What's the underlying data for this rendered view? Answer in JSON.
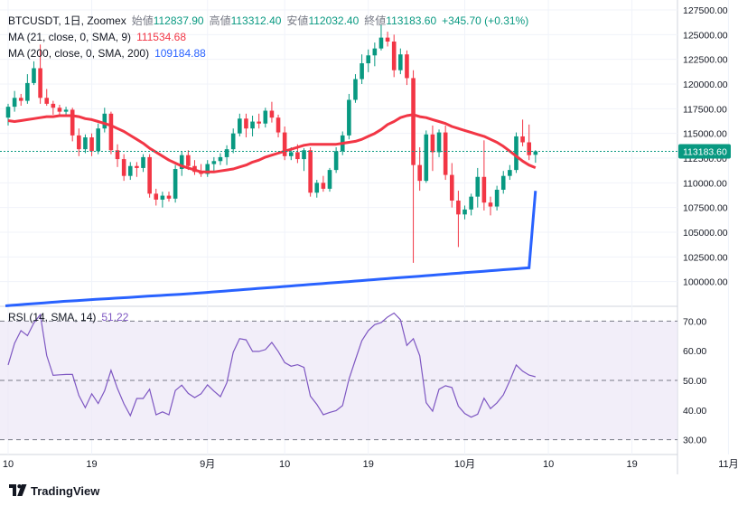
{
  "header": {
    "ticker": "BTCUSDT, 1日, Zoomex",
    "open_label": "始値",
    "open": "112837.90",
    "high_label": "高値",
    "high": "113312.40",
    "low_label": "安値",
    "low": "112032.40",
    "close_label": "終値",
    "close": "113183.60",
    "change": "+345.70 (+0.31%)"
  },
  "indicators": {
    "ma21_label": "MA (21, close, 0, SMA, 9)",
    "ma21_value": "111534.68",
    "ma200_label": "MA (200, close, 0, SMA, 200)",
    "ma200_value": "109184.88",
    "rsi_label": "RSI (14, SMA, 14)",
    "rsi_value": "51.22"
  },
  "price_tag": "113183.60",
  "branding": {
    "name": "TradingView"
  },
  "colors": {
    "up": "#089981",
    "down": "#f23645",
    "ma21": "#f23645",
    "ma200": "#2962ff",
    "rsi": "#7e57c2",
    "rsi_band": "#ede7f6"
  },
  "chart_data": [
    {
      "type": "candlestick",
      "title": "BTCUSDT, 1日, Zoomex",
      "x_tick_labels": [
        "10",
        "19",
        "9月",
        "10",
        "19",
        "10月",
        "10",
        "19",
        "11月"
      ],
      "x_tick_index": [
        0,
        13,
        31,
        43,
        56,
        71,
        84,
        97,
        112
      ],
      "ylim": [
        97500,
        127500
      ],
      "y_ticks": [
        100000,
        102500,
        105000,
        107500,
        110000,
        112500,
        115000,
        117500,
        120000,
        122500,
        125000,
        127500
      ],
      "y_tick_labels": [
        "100000.00",
        "102500.00",
        "105000.00",
        "107500.00",
        "110000.00",
        "112500.00",
        "115000.00",
        "117500.00",
        "120000.00",
        "122500.00",
        "125000.00",
        "127500.00"
      ],
      "current_price": 113183.6,
      "candles": [
        {
          "o": 116600,
          "h": 118000,
          "l": 115800,
          "c": 117700
        },
        {
          "o": 117700,
          "h": 119300,
          "l": 117200,
          "c": 118600
        },
        {
          "o": 118600,
          "h": 119000,
          "l": 117800,
          "c": 118300
        },
        {
          "o": 118300,
          "h": 121000,
          "l": 118000,
          "c": 120100
        },
        {
          "o": 120100,
          "h": 122300,
          "l": 119900,
          "c": 121600
        },
        {
          "o": 121600,
          "h": 124000,
          "l": 118000,
          "c": 118600
        },
        {
          "o": 118600,
          "h": 119500,
          "l": 117800,
          "c": 118000
        },
        {
          "o": 118000,
          "h": 118300,
          "l": 116900,
          "c": 117600
        },
        {
          "o": 117600,
          "h": 117900,
          "l": 116800,
          "c": 117200
        },
        {
          "o": 117200,
          "h": 117700,
          "l": 116900,
          "c": 117400
        },
        {
          "o": 117400,
          "h": 117600,
          "l": 114200,
          "c": 114800
        },
        {
          "o": 114800,
          "h": 115500,
          "l": 112700,
          "c": 113400
        },
        {
          "o": 113400,
          "h": 114900,
          "l": 113000,
          "c": 114600
        },
        {
          "o": 114600,
          "h": 115000,
          "l": 112700,
          "c": 113200
        },
        {
          "o": 113200,
          "h": 116000,
          "l": 112900,
          "c": 115500
        },
        {
          "o": 115500,
          "h": 117600,
          "l": 115100,
          "c": 117000
        },
        {
          "o": 117000,
          "h": 117200,
          "l": 112900,
          "c": 113300
        },
        {
          "o": 113300,
          "h": 113900,
          "l": 111600,
          "c": 112400
        },
        {
          "o": 112400,
          "h": 112900,
          "l": 110200,
          "c": 110700
        },
        {
          "o": 110700,
          "h": 112100,
          "l": 110300,
          "c": 111700
        },
        {
          "o": 111700,
          "h": 112100,
          "l": 110600,
          "c": 111500
        },
        {
          "o": 111500,
          "h": 112900,
          "l": 111100,
          "c": 112600
        },
        {
          "o": 112600,
          "h": 112900,
          "l": 108500,
          "c": 108900
        },
        {
          "o": 108900,
          "h": 109400,
          "l": 107700,
          "c": 108300
        },
        {
          "o": 108300,
          "h": 109100,
          "l": 107500,
          "c": 108700
        },
        {
          "o": 108700,
          "h": 109100,
          "l": 108100,
          "c": 108400
        },
        {
          "o": 108400,
          "h": 111800,
          "l": 108000,
          "c": 111400
        },
        {
          "o": 111400,
          "h": 113200,
          "l": 110700,
          "c": 112800
        },
        {
          "o": 112800,
          "h": 113300,
          "l": 111300,
          "c": 111700
        },
        {
          "o": 111700,
          "h": 112300,
          "l": 110800,
          "c": 111100
        },
        {
          "o": 111100,
          "h": 111900,
          "l": 110600,
          "c": 110900
        },
        {
          "o": 110900,
          "h": 112300,
          "l": 110600,
          "c": 111900
        },
        {
          "o": 111900,
          "h": 112600,
          "l": 111200,
          "c": 112200
        },
        {
          "o": 112200,
          "h": 113000,
          "l": 111800,
          "c": 112600
        },
        {
          "o": 112600,
          "h": 113800,
          "l": 111800,
          "c": 113400
        },
        {
          "o": 113400,
          "h": 115500,
          "l": 113000,
          "c": 115000
        },
        {
          "o": 115000,
          "h": 117000,
          "l": 114700,
          "c": 116500
        },
        {
          "o": 116500,
          "h": 117000,
          "l": 114600,
          "c": 115500
        },
        {
          "o": 115500,
          "h": 116800,
          "l": 114700,
          "c": 116200
        },
        {
          "o": 116200,
          "h": 117000,
          "l": 115500,
          "c": 116000
        },
        {
          "o": 116000,
          "h": 117600,
          "l": 115600,
          "c": 117300
        },
        {
          "o": 117300,
          "h": 118200,
          "l": 116100,
          "c": 116600
        },
        {
          "o": 116600,
          "h": 116900,
          "l": 114600,
          "c": 115100
        },
        {
          "o": 115100,
          "h": 115700,
          "l": 112300,
          "c": 112700
        },
        {
          "o": 112700,
          "h": 113600,
          "l": 112300,
          "c": 113100
        },
        {
          "o": 113100,
          "h": 113900,
          "l": 112000,
          "c": 112400
        },
        {
          "o": 112400,
          "h": 113500,
          "l": 111200,
          "c": 113300
        },
        {
          "o": 113300,
          "h": 113600,
          "l": 108600,
          "c": 109000
        },
        {
          "o": 109000,
          "h": 110300,
          "l": 108500,
          "c": 110000
        },
        {
          "o": 110000,
          "h": 110700,
          "l": 109100,
          "c": 109400
        },
        {
          "o": 109400,
          "h": 111500,
          "l": 109100,
          "c": 111300
        },
        {
          "o": 111300,
          "h": 113600,
          "l": 111000,
          "c": 113200
        },
        {
          "o": 113200,
          "h": 115200,
          "l": 112800,
          "c": 114800
        },
        {
          "o": 114800,
          "h": 119000,
          "l": 114400,
          "c": 118400
        },
        {
          "o": 118400,
          "h": 121000,
          "l": 118100,
          "c": 120500
        },
        {
          "o": 120500,
          "h": 123000,
          "l": 120000,
          "c": 122100
        },
        {
          "o": 122100,
          "h": 123500,
          "l": 121200,
          "c": 122900
        },
        {
          "o": 122900,
          "h": 124200,
          "l": 121800,
          "c": 123600
        },
        {
          "o": 123600,
          "h": 126000,
          "l": 123400,
          "c": 124700
        },
        {
          "o": 124700,
          "h": 125300,
          "l": 123800,
          "c": 124300
        },
        {
          "o": 124300,
          "h": 125000,
          "l": 120700,
          "c": 121400
        },
        {
          "o": 121400,
          "h": 123600,
          "l": 121000,
          "c": 123000
        },
        {
          "o": 123000,
          "h": 123400,
          "l": 119900,
          "c": 120600
        },
        {
          "o": 120600,
          "h": 121400,
          "l": 101900,
          "c": 111800
        },
        {
          "o": 111800,
          "h": 113600,
          "l": 109200,
          "c": 110200
        },
        {
          "o": 110200,
          "h": 115300,
          "l": 110000,
          "c": 114900
        },
        {
          "o": 114900,
          "h": 115800,
          "l": 111200,
          "c": 113100
        },
        {
          "o": 113100,
          "h": 115400,
          "l": 112600,
          "c": 115100
        },
        {
          "o": 115100,
          "h": 115800,
          "l": 110300,
          "c": 110800
        },
        {
          "o": 110800,
          "h": 112000,
          "l": 107500,
          "c": 108200
        },
        {
          "o": 108200,
          "h": 109200,
          "l": 103500,
          "c": 106800
        },
        {
          "o": 106800,
          "h": 107700,
          "l": 106300,
          "c": 107300
        },
        {
          "o": 107300,
          "h": 108900,
          "l": 106700,
          "c": 108600
        },
        {
          "o": 108600,
          "h": 111500,
          "l": 107500,
          "c": 110600
        },
        {
          "o": 110600,
          "h": 114300,
          "l": 107200,
          "c": 108000
        },
        {
          "o": 108000,
          "h": 108600,
          "l": 106700,
          "c": 107600
        },
        {
          "o": 107600,
          "h": 109700,
          "l": 107200,
          "c": 109300
        },
        {
          "o": 109300,
          "h": 111200,
          "l": 108900,
          "c": 110700
        },
        {
          "o": 110700,
          "h": 111800,
          "l": 110300,
          "c": 111300
        },
        {
          "o": 111300,
          "h": 115100,
          "l": 111000,
          "c": 114700
        },
        {
          "o": 114700,
          "h": 116400,
          "l": 113700,
          "c": 114100
        },
        {
          "o": 114100,
          "h": 115900,
          "l": 112300,
          "c": 112800
        },
        {
          "o": 112837.9,
          "h": 113312.4,
          "l": 112032.4,
          "c": 113183.6
        }
      ],
      "ma21": [
        116300,
        116200,
        116300,
        116400,
        116500,
        116600,
        116700,
        116700,
        116800,
        116800,
        116800,
        116700,
        116500,
        116400,
        116200,
        116000,
        115800,
        115500,
        115200,
        114800,
        114400,
        114000,
        113500,
        113100,
        112700,
        112300,
        112000,
        111700,
        111500,
        111300,
        111100,
        111100,
        111100,
        111200,
        111300,
        111400,
        111600,
        111800,
        112100,
        112300,
        112600,
        112800,
        113000,
        113200,
        113400,
        113600,
        113800,
        113900,
        113900,
        113900,
        113900,
        113900,
        114000,
        114100,
        114200,
        114400,
        114700,
        115000,
        115400,
        115900,
        116200,
        116600,
        116800,
        116900,
        116700,
        116600,
        116400,
        116200,
        116000,
        115700,
        115500,
        115300,
        115100,
        114900,
        114700,
        114400,
        114100,
        113700,
        113200,
        112700,
        112200,
        111800,
        111534.68
      ],
      "ma200": [
        97550,
        97600,
        97650,
        97700,
        97750,
        97800,
        97850,
        97900,
        97950,
        98000,
        98040,
        98080,
        98120,
        98160,
        98200,
        98240,
        98280,
        98320,
        98360,
        98400,
        98440,
        98480,
        98520,
        98560,
        98600,
        98640,
        98680,
        98720,
        98760,
        98800,
        98850,
        98900,
        98950,
        99000,
        99050,
        99100,
        99150,
        99200,
        99250,
        99300,
        99350,
        99400,
        99450,
        99500,
        99550,
        99600,
        99650,
        99700,
        99750,
        99800,
        99850,
        99900,
        99950,
        100000,
        100050,
        100100,
        100150,
        100200,
        100250,
        100300,
        100350,
        100400,
        100450,
        100500,
        100550,
        100600,
        100650,
        100700,
        100750,
        100800,
        100850,
        100900,
        100950,
        101000,
        101050,
        101100,
        101150,
        101200,
        101250,
        101300,
        101350,
        101400,
        109184.88
      ]
    },
    {
      "type": "line",
      "title": "RSI (14, SMA, 14)",
      "ylim": [
        25,
        75
      ],
      "y_ticks": [
        30,
        40,
        50,
        60,
        70
      ],
      "y_tick_labels": [
        "30.00",
        "40.00",
        "50.00",
        "60.00",
        "70.00"
      ],
      "band": [
        30,
        70
      ],
      "midline": 50,
      "values": [
        55.2,
        62.5,
        66.8,
        65.1,
        69.4,
        72.2,
        58.4,
        51.7,
        51.9,
        52,
        52,
        44.9,
        40.8,
        45.5,
        42.2,
        46.5,
        53.4,
        47.3,
        42.1,
        38.1,
        43.9,
        43.9,
        47,
        38.4,
        39.4,
        38.4,
        46.6,
        48.4,
        45.6,
        44.2,
        45.5,
        48.5,
        46.4,
        44.5,
        49.2,
        59.5,
        64.1,
        63.7,
        59.8,
        59.8,
        60.4,
        62.8,
        59.8,
        56,
        54.8,
        55.3,
        54.4,
        44.7,
        41.9,
        38.4,
        39.2,
        39.8,
        41.5,
        50.5,
        57,
        63.4,
        66.8,
        68.8,
        69.5,
        71.4,
        72.7,
        70.5,
        61.8,
        64.1,
        58.3,
        42.5,
        39.6,
        47,
        48.2,
        47.6,
        41.3,
        38.8,
        37.6,
        38.6,
        44,
        40.5,
        42.4,
        45.1,
        49.9,
        55.2,
        53.1,
        51.8,
        51.22
      ]
    }
  ]
}
